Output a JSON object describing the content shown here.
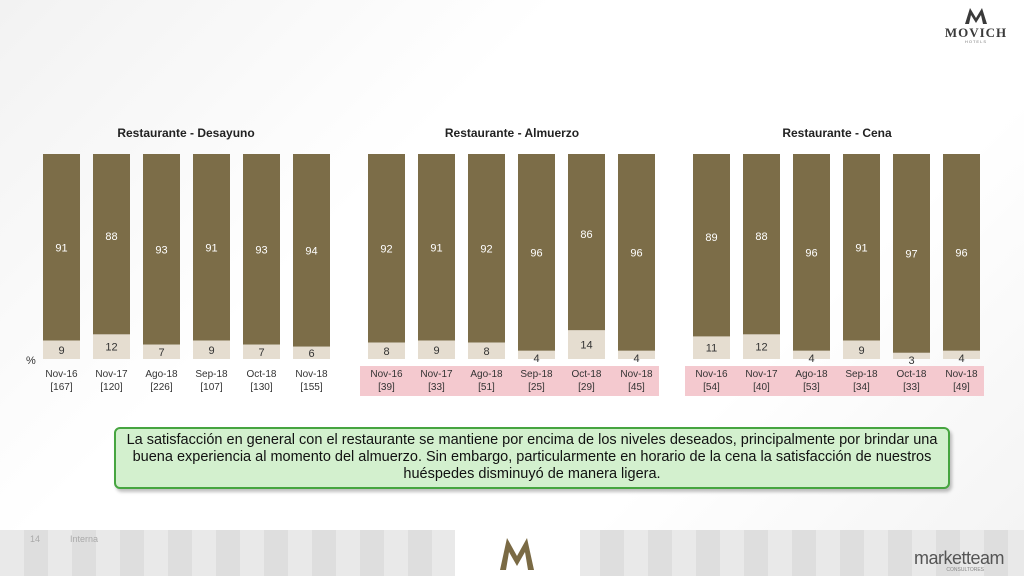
{
  "logo": {
    "name": "MOVICH",
    "sub": "HOTELS"
  },
  "percent_sign": "%",
  "charts": [
    {
      "title": "Restaurante - Desayuno",
      "categories": [
        "Nov-16",
        "Nov-17",
        "Ago-18",
        "Sep-18",
        "Oct-18",
        "Nov-18"
      ],
      "bases": [
        "[167]",
        "[120]",
        "[226]",
        "[107]",
        "[130]",
        "[155]"
      ],
      "top": [
        91,
        88,
        93,
        91,
        93,
        94
      ],
      "bottom": [
        9,
        12,
        7,
        9,
        7,
        6
      ],
      "highlight": false
    },
    {
      "title": "Restaurante - Almuerzo",
      "categories": [
        "Nov-16",
        "Nov-17",
        "Ago-18",
        "Sep-18",
        "Oct-18",
        "Nov-18"
      ],
      "bases": [
        "[39]",
        "[33]",
        "[51]",
        "[25]",
        "[29]",
        "[45]"
      ],
      "top": [
        92,
        91,
        92,
        96,
        86,
        96
      ],
      "bottom": [
        8,
        9,
        8,
        4,
        14,
        4
      ],
      "highlight": true
    },
    {
      "title": "Restaurante - Cena",
      "categories": [
        "Nov-16",
        "Nov-17",
        "Ago-18",
        "Sep-18",
        "Oct-18",
        "Nov-18"
      ],
      "bases": [
        "[54]",
        "[40]",
        "[53]",
        "[34]",
        "[33]",
        "[49]"
      ],
      "top": [
        89,
        88,
        96,
        91,
        97,
        96
      ],
      "bottom": [
        11,
        12,
        4,
        9,
        3,
        4
      ],
      "highlight": true
    }
  ],
  "chart_data": [
    {
      "type": "bar",
      "stacked": true,
      "title": "Restaurante - Desayuno",
      "categories": [
        "Nov-16",
        "Nov-17",
        "Ago-18",
        "Sep-18",
        "Oct-18",
        "Nov-18"
      ],
      "series": [
        {
          "values": [
            91,
            88,
            93,
            91,
            93,
            94
          ]
        },
        {
          "values": [
            9,
            12,
            7,
            9,
            7,
            6
          ]
        }
      ],
      "ylabel": "%",
      "ylim": [
        0,
        100
      ]
    },
    {
      "type": "bar",
      "stacked": true,
      "title": "Restaurante - Almuerzo",
      "categories": [
        "Nov-16",
        "Nov-17",
        "Ago-18",
        "Sep-18",
        "Oct-18",
        "Nov-18"
      ],
      "series": [
        {
          "values": [
            92,
            91,
            92,
            96,
            86,
            96
          ]
        },
        {
          "values": [
            8,
            9,
            8,
            4,
            14,
            4
          ]
        }
      ],
      "ylim": [
        0,
        100
      ]
    },
    {
      "type": "bar",
      "stacked": true,
      "title": "Restaurante - Cena",
      "categories": [
        "Nov-16",
        "Nov-17",
        "Ago-18",
        "Sep-18",
        "Oct-18",
        "Nov-18"
      ],
      "series": [
        {
          "values": [
            89,
            88,
            96,
            91,
            97,
            96
          ]
        },
        {
          "values": [
            11,
            12,
            4,
            9,
            3,
            4
          ]
        }
      ],
      "ylim": [
        0,
        100
      ]
    }
  ],
  "colors": {
    "top": "#7c6d48",
    "bottom": "#e5ddd0",
    "highlight": "#f4c9cf"
  },
  "note": "La satisfacción en general con el restaurante se mantiene por encima de los niveles deseados, principalmente por brindar una buena experiencia al momento del almuerzo. Sin embargo, particularmente en horario de la cena la satisfacción de nuestros huéspedes disminuyó de manera ligera.",
  "footer": {
    "page": "14",
    "label": "Interna",
    "brand": "marketteam",
    "brand_sub": "CONSULTORES"
  }
}
